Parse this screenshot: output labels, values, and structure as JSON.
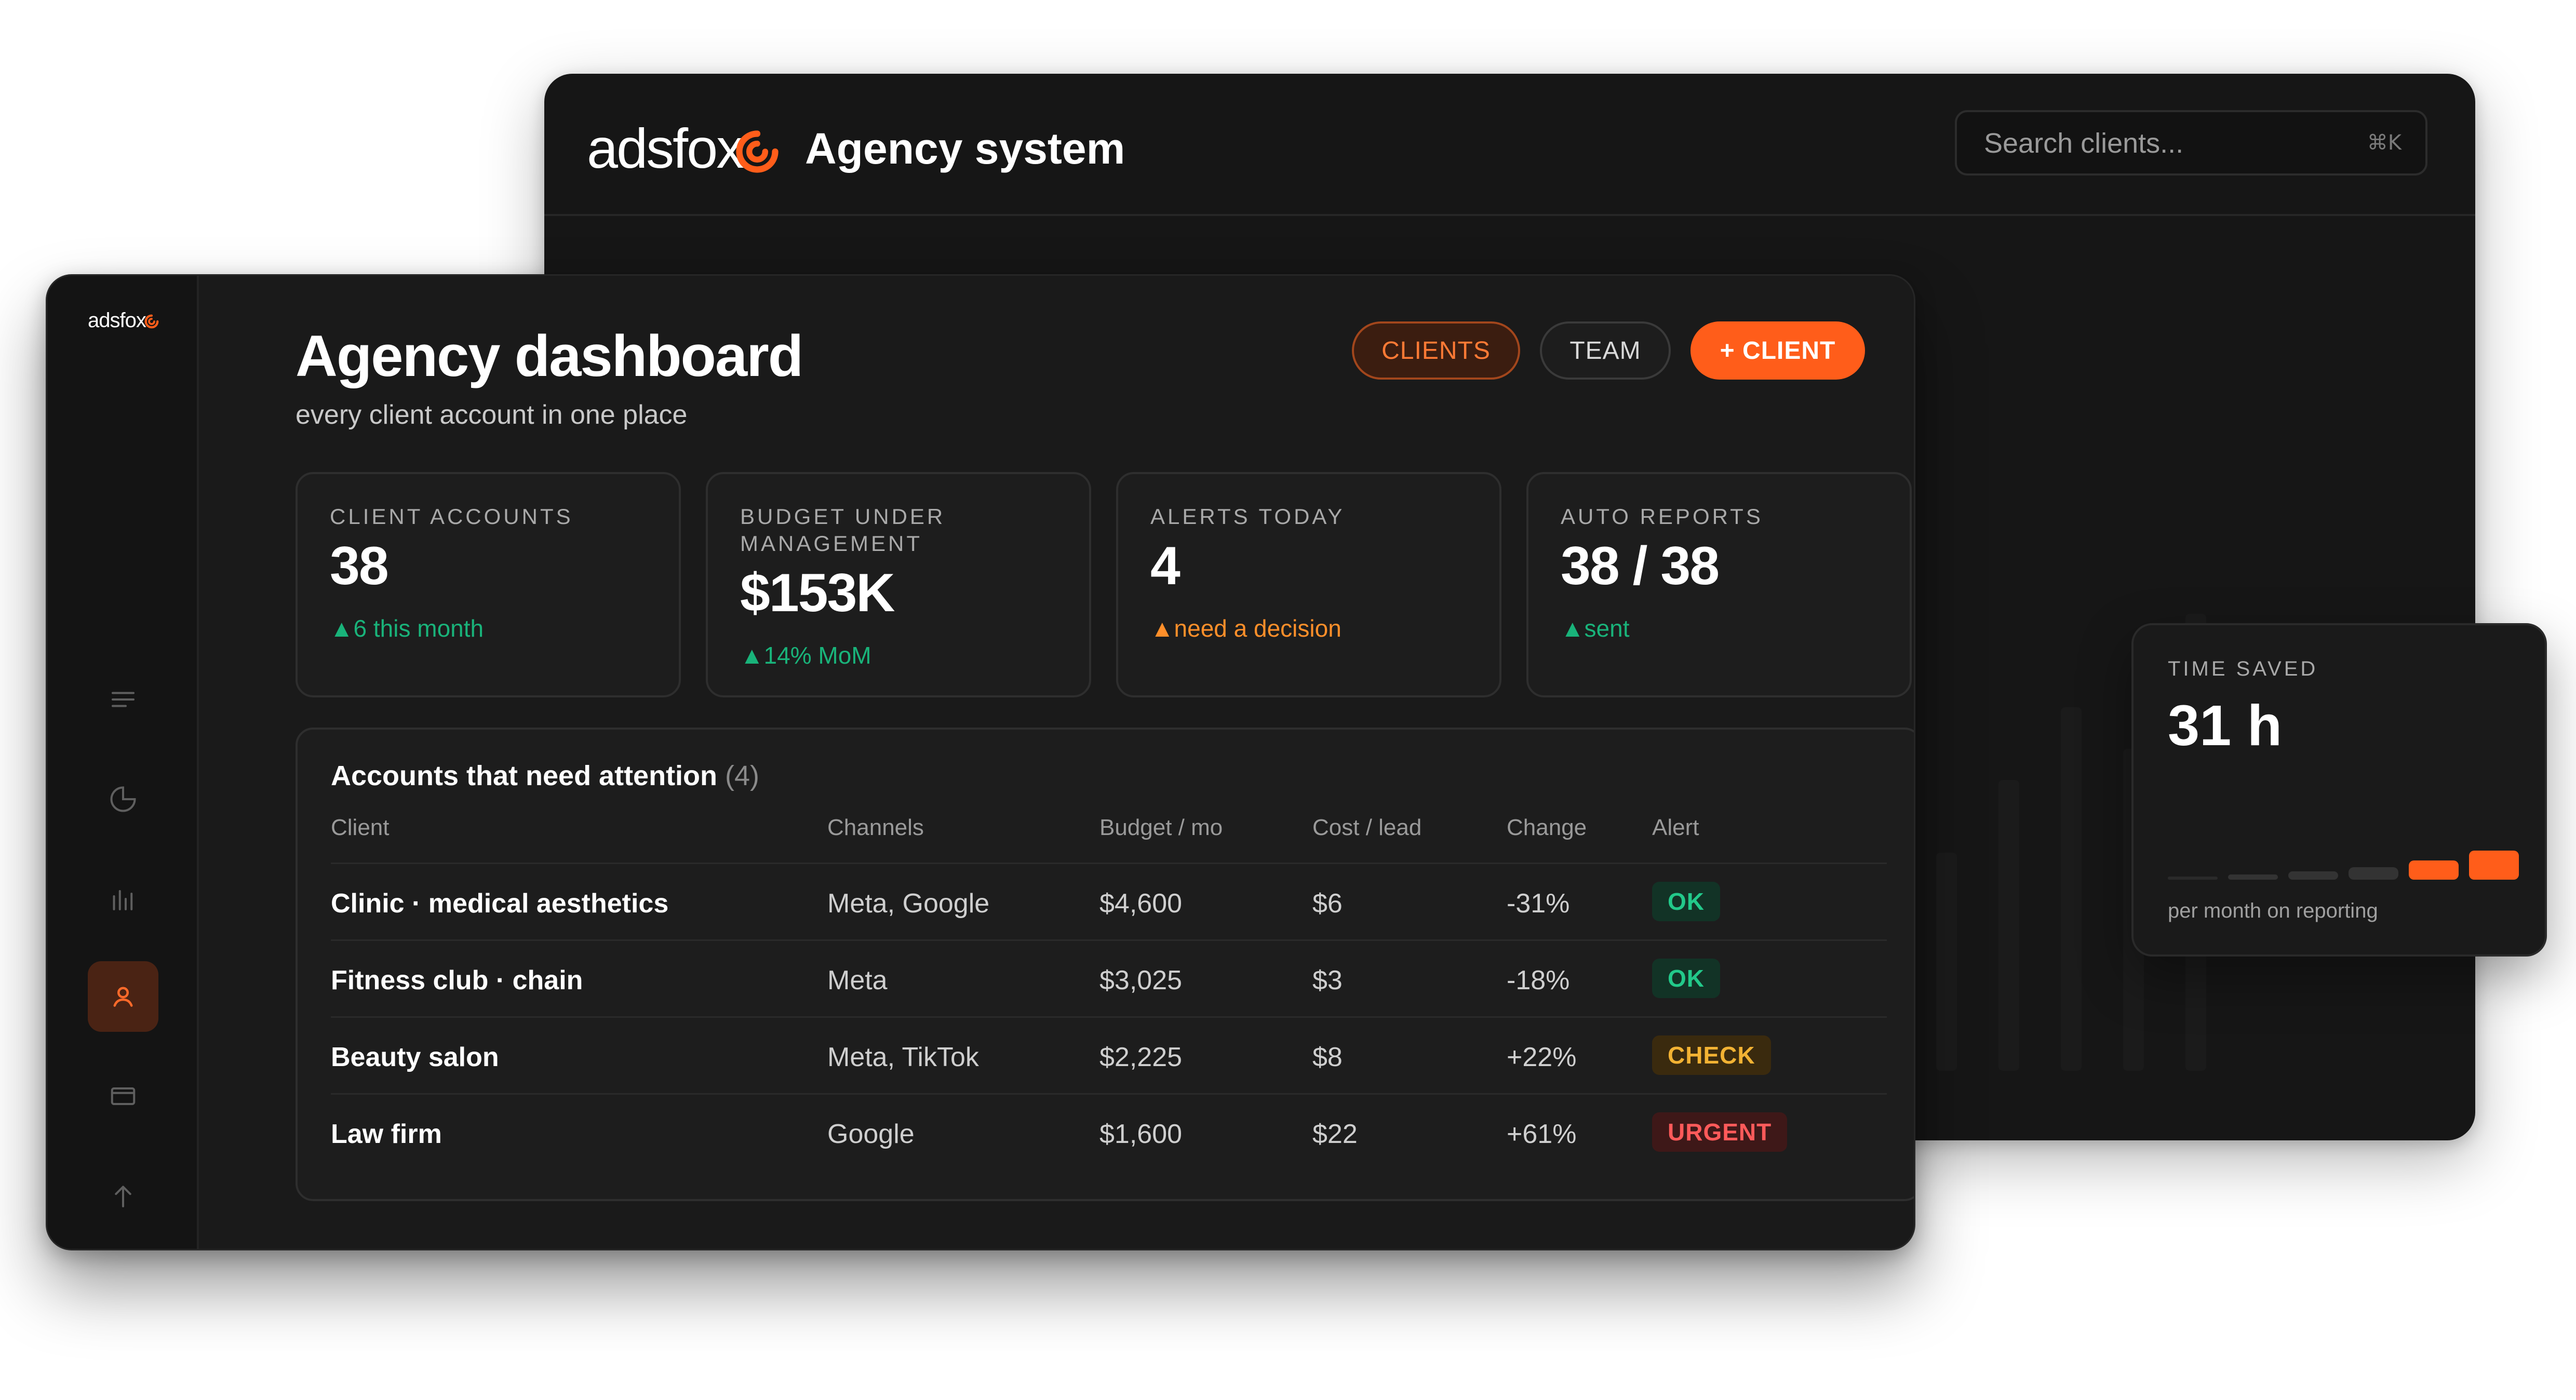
{
  "back_window": {
    "logo_text": "adsfox",
    "app_title": "Agency system",
    "search": {
      "placeholder": "Search clients...",
      "shortcut": "⌘K"
    }
  },
  "front_window": {
    "sidebar": {
      "logo_text": "adsfox",
      "items": [
        {
          "icon": "menu-icon",
          "active": false
        },
        {
          "icon": "pie-chart-icon",
          "active": false
        },
        {
          "icon": "bar-chart-icon",
          "active": false
        },
        {
          "icon": "user-icon",
          "active": true
        },
        {
          "icon": "card-icon",
          "active": false
        },
        {
          "icon": "arrow-up-icon",
          "active": false
        },
        {
          "icon": "home-icon",
          "active": false
        }
      ]
    },
    "header": {
      "title": "Agency dashboard",
      "subtitle": "every client account in one place",
      "buttons": {
        "clients": "CLIENTS",
        "team": "TEAM",
        "add_client": "+ CLIENT"
      }
    },
    "stats": [
      {
        "label": "CLIENT ACCOUNTS",
        "value": "38",
        "delta_icon": "▲",
        "delta": "6 this month",
        "tone": "green"
      },
      {
        "label": "BUDGET UNDER MANAGEMENT",
        "value": "$153K",
        "delta_icon": "▲",
        "delta": "14% MoM",
        "tone": "green"
      },
      {
        "label": "ALERTS TODAY",
        "value": "4",
        "delta_icon": "▲",
        "delta": "need a decision",
        "tone": "orange"
      },
      {
        "label": "AUTO REPORTS",
        "value": "38 / 38",
        "delta_icon": "▲",
        "delta": "sent",
        "tone": "green"
      }
    ],
    "table": {
      "title": "Accounts that need attention",
      "count": "(4)",
      "columns": [
        "Client",
        "Channels",
        "Budget / mo",
        "Cost / lead",
        "Change",
        "Alert"
      ],
      "rows": [
        {
          "client": "Clinic · medical aesthetics",
          "channels": "Meta, Google",
          "budget": "$4,600",
          "cpl": "$6",
          "change": "-31%",
          "alert": "OK",
          "alert_tone": "ok"
        },
        {
          "client": "Fitness club · chain",
          "channels": "Meta",
          "budget": "$3,025",
          "cpl": "$3",
          "change": "-18%",
          "alert": "OK",
          "alert_tone": "ok"
        },
        {
          "client": "Beauty salon",
          "channels": "Meta, TikTok",
          "budget": "$2,225",
          "cpl": "$8",
          "change": "+22%",
          "alert": "CHECK",
          "alert_tone": "check"
        },
        {
          "client": "Law firm",
          "channels": "Google",
          "budget": "$1,600",
          "cpl": "$22",
          "change": "+61%",
          "alert": "URGENT",
          "alert_tone": "urgent"
        }
      ]
    }
  },
  "time_saved": {
    "label": "TIME SAVED",
    "value": "31 h",
    "caption": "per month on reporting",
    "bar_levels": [
      0.1,
      0.18,
      0.28,
      0.42,
      0.66,
      1.0
    ]
  },
  "colors": {
    "accent": "#ff5d1a",
    "green": "#19b37a",
    "orange": "#ff8f2a",
    "ok": "#22c98a",
    "check": "#f2b233",
    "urgent": "#ff5a5a"
  }
}
